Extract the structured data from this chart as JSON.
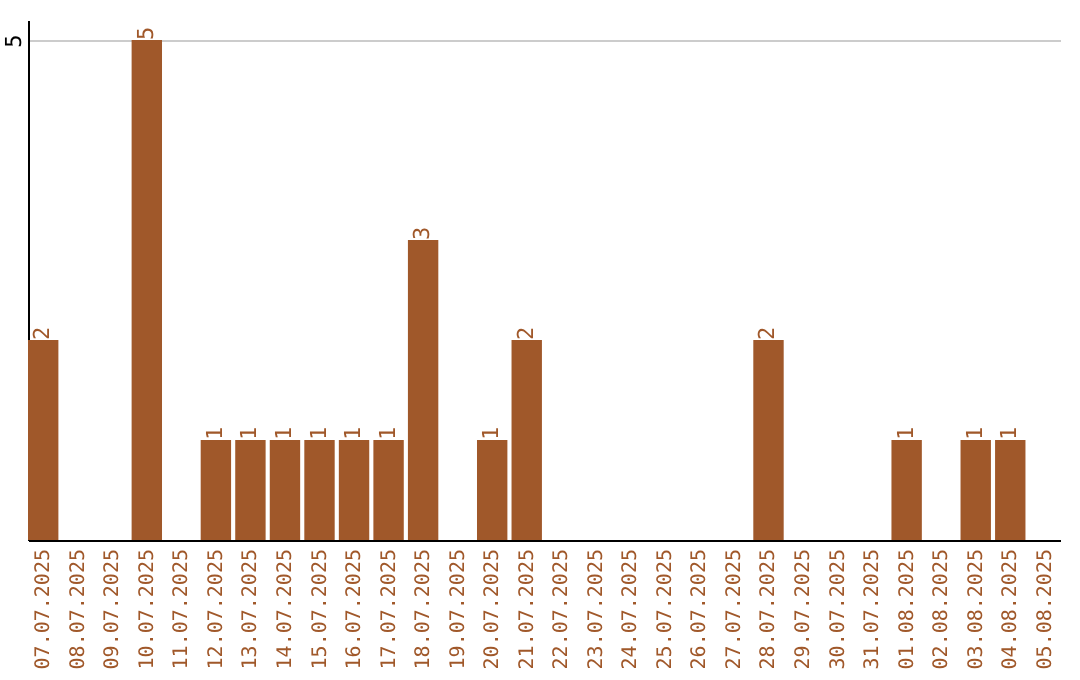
{
  "chart_data": {
    "type": "bar",
    "categories": [
      "07.07.2025",
      "08.07.2025",
      "09.07.2025",
      "10.07.2025",
      "11.07.2025",
      "12.07.2025",
      "13.07.2025",
      "14.07.2025",
      "15.07.2025",
      "16.07.2025",
      "17.07.2025",
      "18.07.2025",
      "19.07.2025",
      "20.07.2025",
      "21.07.2025",
      "22.07.2025",
      "23.07.2025",
      "24.07.2025",
      "25.07.2025",
      "26.07.2025",
      "27.07.2025",
      "28.07.2025",
      "29.07.2025",
      "30.07.2025",
      "31.07.2025",
      "01.08.2025",
      "02.08.2025",
      "03.08.2025",
      "04.08.2025",
      "05.08.2025"
    ],
    "values": [
      2,
      0,
      0,
      5,
      0,
      1,
      1,
      1,
      1,
      1,
      1,
      3,
      0,
      1,
      2,
      0,
      0,
      0,
      0,
      0,
      0,
      2,
      0,
      0,
      0,
      1,
      0,
      1,
      1,
      0
    ],
    "value_labels": [
      "2",
      null,
      null,
      "5",
      null,
      "1",
      "1",
      "1",
      "1",
      "1",
      "1",
      "3",
      null,
      "1",
      "2",
      null,
      null,
      null,
      null,
      null,
      null,
      "2",
      null,
      null,
      null,
      "1",
      null,
      "1",
      "1",
      null
    ],
    "color": "#a0582a",
    "ylim": [
      0,
      5.2
    ],
    "yticks": [
      5
    ],
    "grid": "y"
  }
}
